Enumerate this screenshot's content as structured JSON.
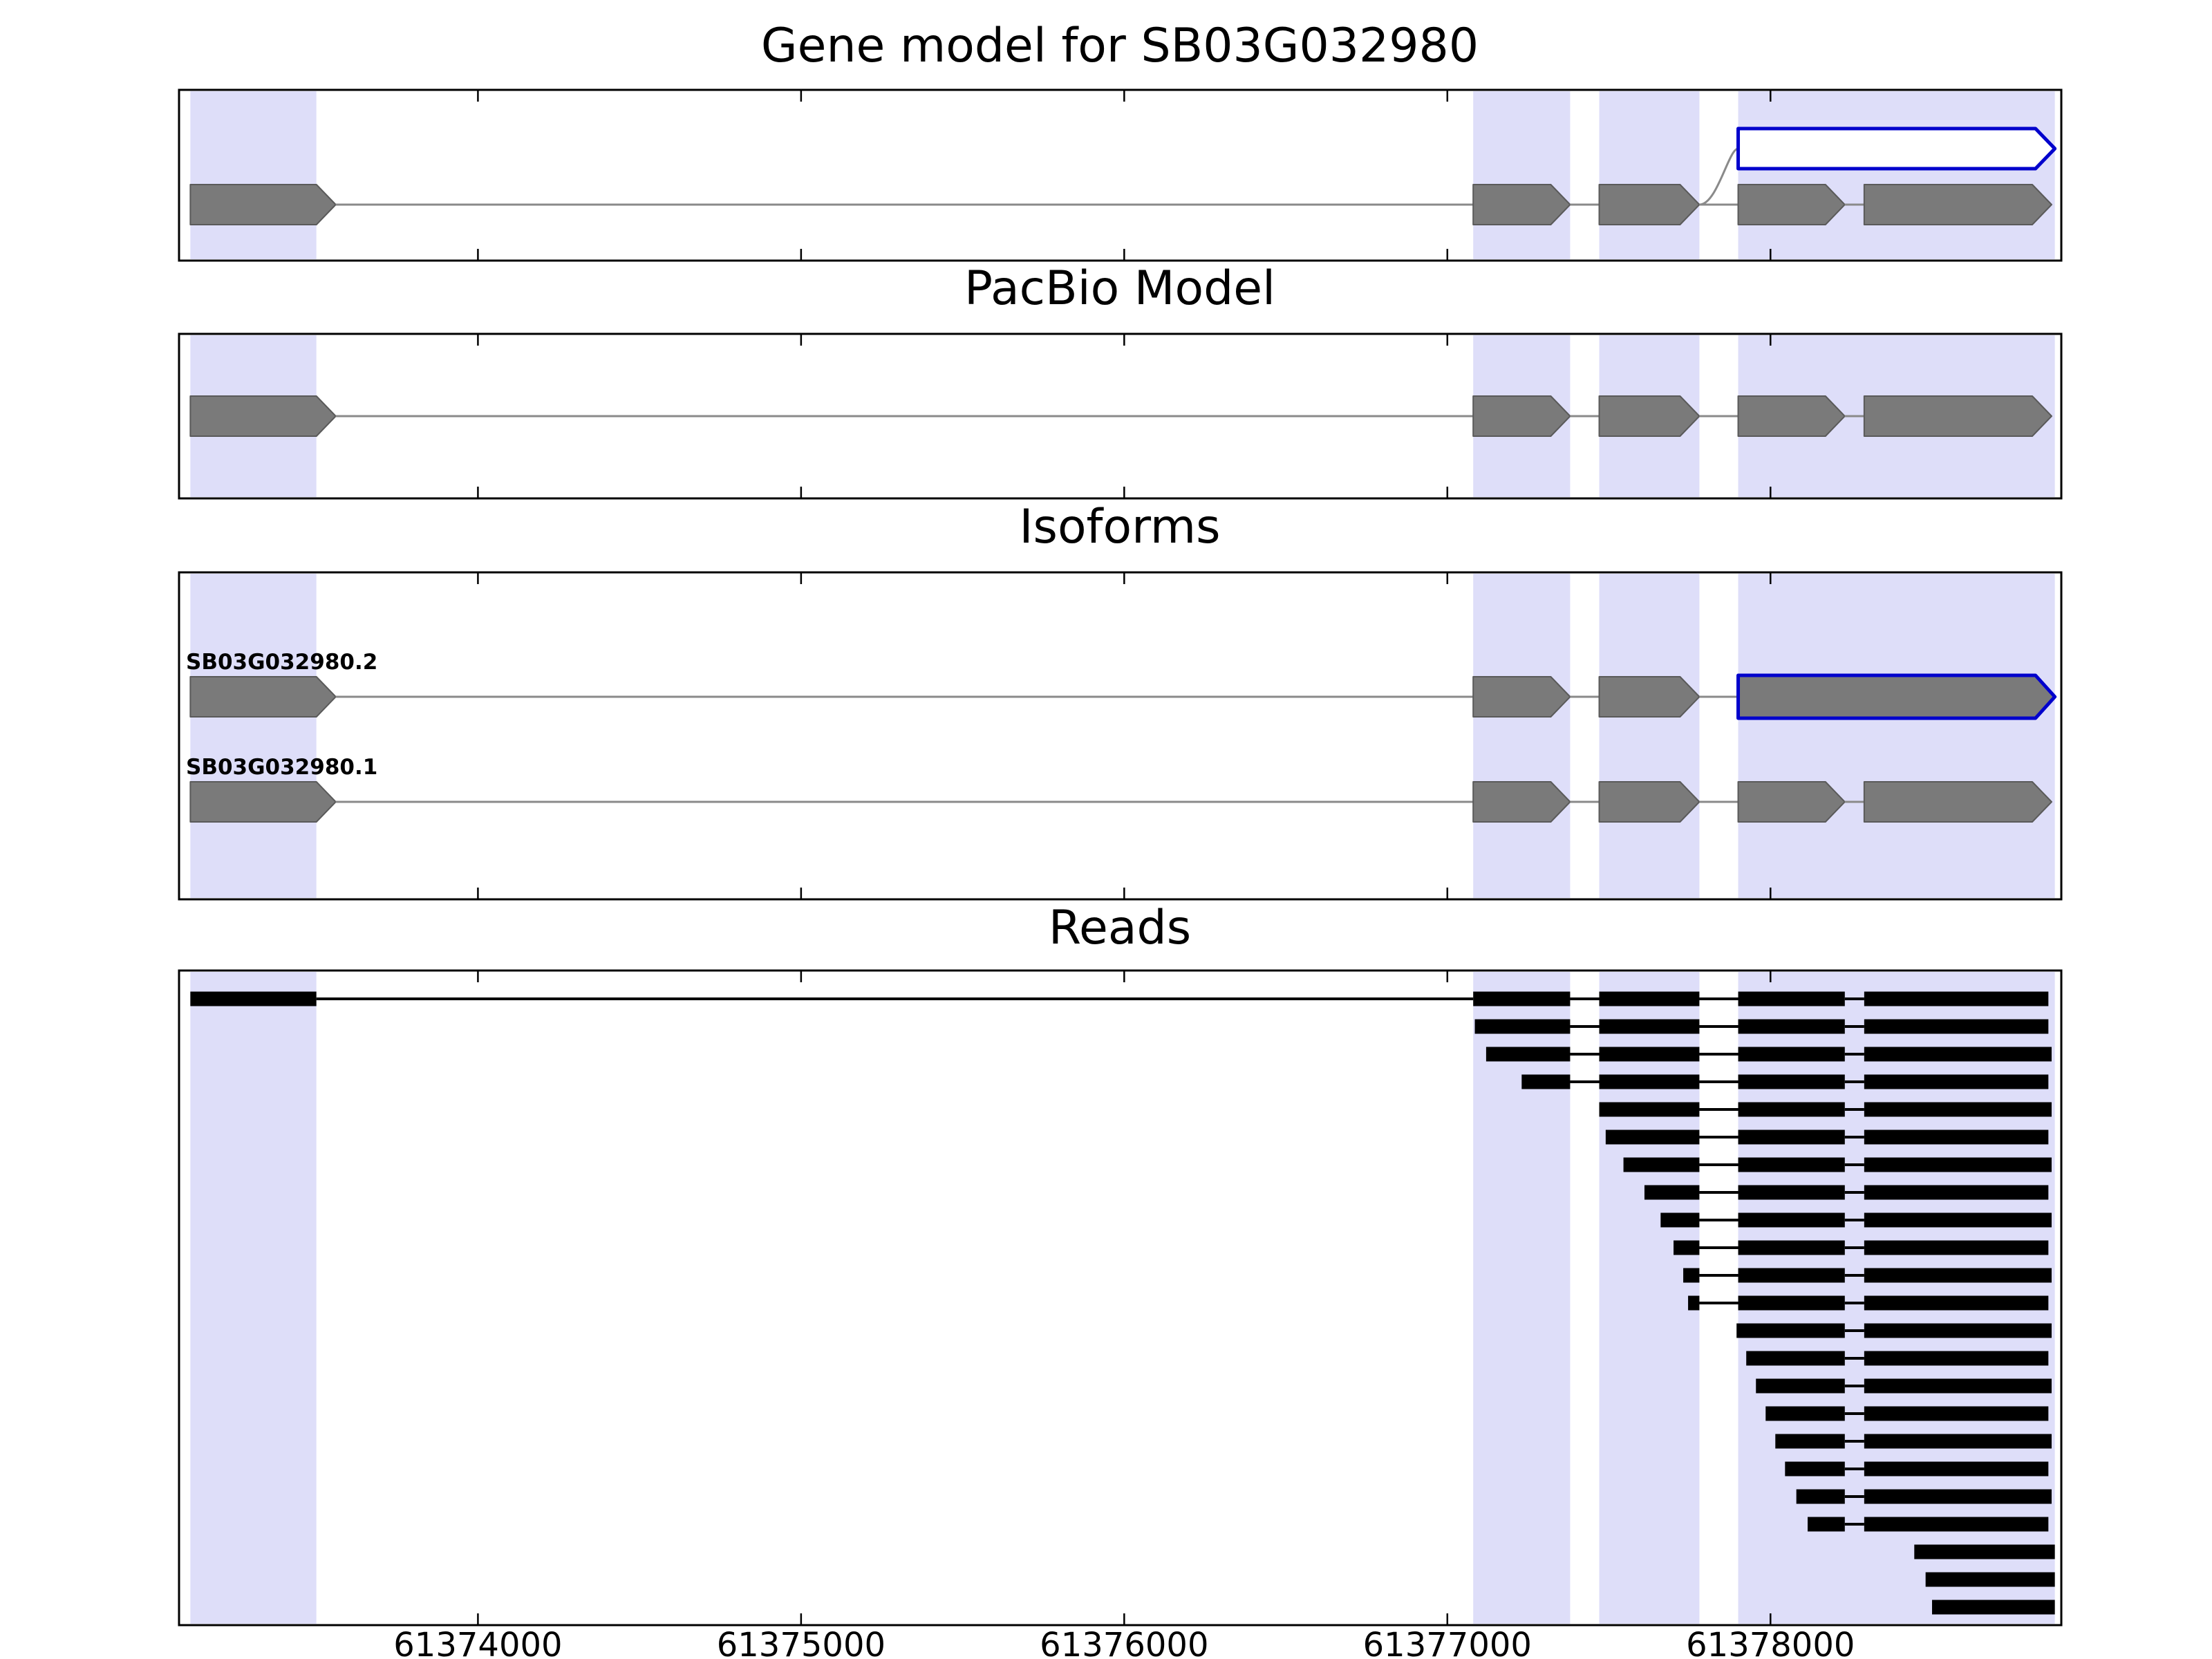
{
  "chart_data": {
    "type": "genome-browser",
    "title": "Gene model for SB03G032980",
    "genome": {
      "xmin": 61373075,
      "xmax": 61378900,
      "unit": "bp"
    },
    "axis": {
      "ticks": [
        61374000,
        61375000,
        61376000,
        61377000,
        61378000
      ],
      "tick_labels": [
        "61374000",
        "61375000",
        "61376000",
        "61377000",
        "61378000"
      ]
    },
    "highlight_bands": [
      [
        61373110,
        61373500
      ],
      [
        61377080,
        61377380
      ],
      [
        61377470,
        61377780
      ],
      [
        61377900,
        61378880
      ]
    ],
    "panels": {
      "gene_model": {
        "title": "Gene model for SB03G032980",
        "exons": [
          [
            61373110,
            61373560
          ],
          [
            61377080,
            61377380
          ],
          [
            61377470,
            61377780
          ],
          [
            61377900,
            61378230
          ],
          [
            61378290,
            61378870
          ]
        ],
        "alt_exon": {
          "span": [
            61377900,
            61378880
          ],
          "style": "blue-outline-white-fill",
          "connect_from": 61377780
        }
      },
      "pacbio": {
        "title": "PacBio Model",
        "exons": [
          [
            61373110,
            61373560
          ],
          [
            61377080,
            61377380
          ],
          [
            61377470,
            61377780
          ],
          [
            61377900,
            61378230
          ],
          [
            61378290,
            61378870
          ]
        ]
      },
      "isoforms": {
        "title": "Isoforms",
        "rows": [
          {
            "name": "SB03G032980.2",
            "exons": [
              [
                61373110,
                61373560
              ],
              [
                61377080,
                61377380
              ],
              [
                61377470,
                61377780
              ]
            ],
            "highlight_exon": [
              61377900,
              61378880
            ]
          },
          {
            "name": "SB03G032980.1",
            "exons": [
              [
                61373110,
                61373560
              ],
              [
                61377080,
                61377380
              ],
              [
                61377470,
                61377780
              ],
              [
                61377900,
                61378230
              ],
              [
                61378290,
                61378870
              ]
            ],
            "highlight_exon": null
          }
        ]
      },
      "reads": {
        "title": "Reads",
        "reads": [
          [
            [
              61373110,
              61373500
            ],
            [
              61377080,
              61377380
            ],
            [
              61377470,
              61377780
            ],
            [
              61377900,
              61378230
            ],
            [
              61378290,
              61378860
            ]
          ],
          [
            [
              61377085,
              61377380
            ],
            [
              61377470,
              61377780
            ],
            [
              61377900,
              61378230
            ],
            [
              61378290,
              61378860
            ]
          ],
          [
            [
              61377120,
              61377380
            ],
            [
              61377470,
              61377780
            ],
            [
              61377900,
              61378230
            ],
            [
              61378290,
              61378870
            ]
          ],
          [
            [
              61377230,
              61377380
            ],
            [
              61377470,
              61377780
            ],
            [
              61377900,
              61378230
            ],
            [
              61378290,
              61378860
            ]
          ],
          [
            [
              61377470,
              61377780
            ],
            [
              61377900,
              61378230
            ],
            [
              61378290,
              61378870
            ]
          ],
          [
            [
              61377490,
              61377780
            ],
            [
              61377900,
              61378230
            ],
            [
              61378290,
              61378860
            ]
          ],
          [
            [
              61377545,
              61377780
            ],
            [
              61377900,
              61378230
            ],
            [
              61378290,
              61378870
            ]
          ],
          [
            [
              61377610,
              61377780
            ],
            [
              61377900,
              61378230
            ],
            [
              61378290,
              61378860
            ]
          ],
          [
            [
              61377660,
              61377780
            ],
            [
              61377900,
              61378230
            ],
            [
              61378290,
              61378870
            ]
          ],
          [
            [
              61377700,
              61377780
            ],
            [
              61377900,
              61378230
            ],
            [
              61378290,
              61378860
            ]
          ],
          [
            [
              61377730,
              61377780
            ],
            [
              61377900,
              61378230
            ],
            [
              61378290,
              61378870
            ]
          ],
          [
            [
              61377745,
              61377780
            ],
            [
              61377900,
              61378230
            ],
            [
              61378290,
              61378860
            ]
          ],
          [
            [
              61377895,
              61378230
            ],
            [
              61378290,
              61378870
            ]
          ],
          [
            [
              61377925,
              61378230
            ],
            [
              61378290,
              61378860
            ]
          ],
          [
            [
              61377955,
              61378230
            ],
            [
              61378290,
              61378870
            ]
          ],
          [
            [
              61377985,
              61378230
            ],
            [
              61378290,
              61378860
            ]
          ],
          [
            [
              61378015,
              61378230
            ],
            [
              61378290,
              61378870
            ]
          ],
          [
            [
              61378045,
              61378230
            ],
            [
              61378290,
              61378860
            ]
          ],
          [
            [
              61378080,
              61378230
            ],
            [
              61378290,
              61378870
            ]
          ],
          [
            [
              61378115,
              61378230
            ],
            [
              61378290,
              61378860
            ]
          ],
          [
            [
              61378445,
              61378880
            ]
          ],
          [
            [
              61378480,
              61378880
            ]
          ],
          [
            [
              61378500,
              61378880
            ]
          ]
        ]
      }
    },
    "colors": {
      "exon_fill": "#7a7a7a",
      "exon_stroke": "#5a5a5a",
      "intron_line": "#8a8a8a",
      "highlight_outline": "#0000cc",
      "band": "#dedef9",
      "read": "#000000",
      "border": "#000000",
      "background": "#ffffff"
    }
  }
}
